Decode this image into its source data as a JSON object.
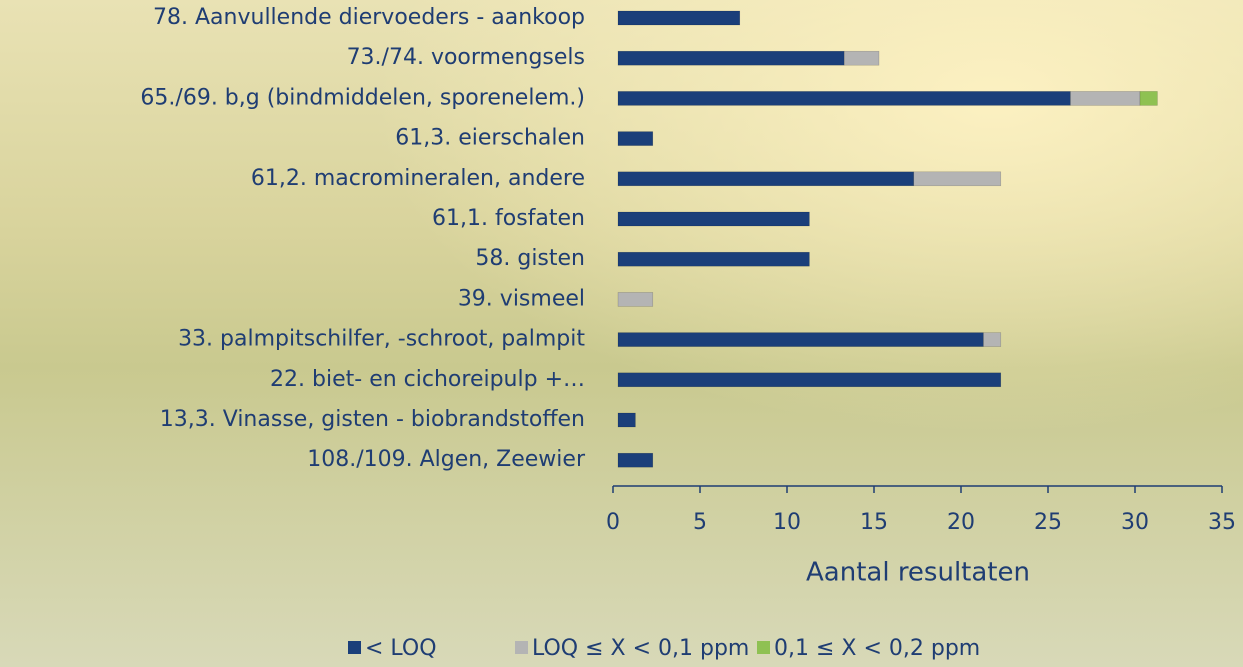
{
  "chart_data": {
    "type": "bar",
    "orientation": "horizontal",
    "stacked": true,
    "categories": [
      "78. Aanvullende diervoeders - aankoop",
      "73./74. voormengsels",
      "65./69. b,g (bindmiddelen, sporenelem.)",
      "61,3. eierschalen",
      "61,2. macromineralen, andere",
      "61,1. fosfaten",
      "58. gisten",
      "39. vismeel",
      "33. palmpitschilfer, -schroot, palmpit",
      "22. biet- en cichoreipulp +…",
      "13,3. Vinasse, gisten - biobrandstoffen",
      "108./109. Algen, Zeewier"
    ],
    "series": [
      {
        "name": "< LOQ",
        "color": "#1b3f7a",
        "values": [
          7,
          13,
          26,
          2,
          17,
          11,
          11,
          0,
          21,
          22,
          1,
          2
        ]
      },
      {
        "name": "LOQ ≤ X < 0,1 ppm",
        "color": "#b4b4b4",
        "values": [
          0,
          2,
          4,
          0,
          5,
          0,
          0,
          2,
          1,
          0,
          0,
          0
        ]
      },
      {
        "name": "0,1 ≤ X < 0,2 ppm",
        "color": "#8fc152",
        "values": [
          0,
          0,
          1,
          0,
          0,
          0,
          0,
          0,
          0,
          0,
          0,
          0
        ]
      }
    ],
    "xlim": [
      0,
      35
    ],
    "xticks": [
      0,
      5,
      10,
      15,
      20,
      25,
      30,
      35
    ],
    "x_label": "Aantal resultaten",
    "legend": "bottom"
  }
}
